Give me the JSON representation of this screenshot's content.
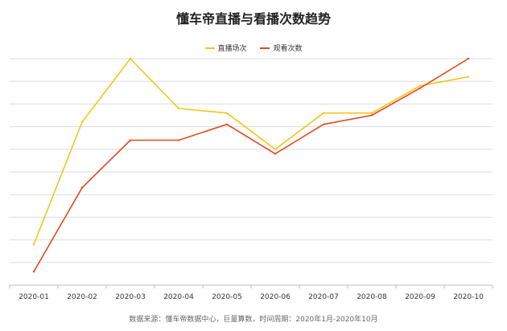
{
  "chart_data": {
    "type": "line",
    "title": "懂车帝直播与看播次数趋势",
    "categories": [
      "2020-01",
      "2020-02",
      "2020-03",
      "2020-04",
      "2020-05",
      "2020-06",
      "2020-07",
      "2020-08",
      "2020-09",
      "2020-10"
    ],
    "series": [
      {
        "name": "直播场次",
        "color": "#F5C518",
        "values": [
          18,
          72,
          100,
          78,
          76,
          60,
          76,
          76,
          88,
          92
        ]
      },
      {
        "name": "观看次数",
        "color": "#E8461E",
        "values": [
          6,
          43,
          64,
          64,
          71,
          58,
          71,
          75,
          87,
          100
        ]
      }
    ],
    "ylim": [
      0,
      100
    ],
    "grid": true,
    "legend_position": "top-center",
    "source": "数据来源：懂车帝数据中心，巨量算数，时间周期：2020年1月-2020年10月"
  }
}
